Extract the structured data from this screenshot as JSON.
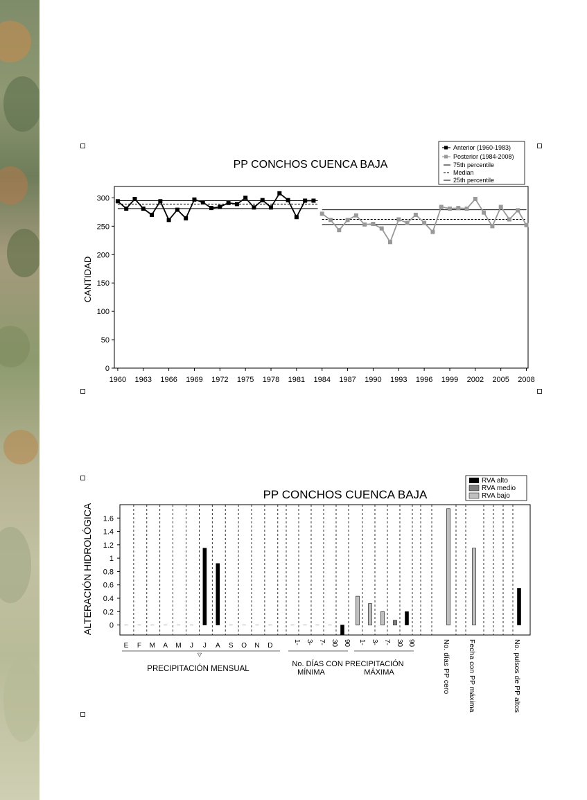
{
  "colors": {
    "anterior": "#000000",
    "posterior": "#999999",
    "alto": "#000000",
    "medio": "#808080",
    "bajo": "#c0c0c0"
  },
  "chart_data": [
    {
      "type": "line",
      "title": "PP CONCHOS CUENCA BAJA",
      "ylabel": "CANTIDAD",
      "ylim": [
        0,
        320
      ],
      "yticks": [
        "0",
        "50",
        "100",
        "150",
        "200",
        "250",
        "300"
      ],
      "xticks": [
        "1960",
        "1963",
        "1966",
        "1969",
        "1972",
        "1975",
        "1978",
        "1981",
        "1984",
        "1987",
        "1990",
        "1993",
        "1996",
        "1999",
        "2002",
        "2005",
        "2008"
      ],
      "legend": [
        "Anterior (1960-1983)",
        "Posterior (1984-2008)",
        "75th percentile",
        "Median",
        "25th percentile"
      ],
      "legend_position": "top-right",
      "series": [
        {
          "name": "Anterior (1960-1983)",
          "x": [
            1960,
            1961,
            1962,
            1963,
            1964,
            1965,
            1966,
            1967,
            1968,
            1969,
            1970,
            1971,
            1972,
            1973,
            1974,
            1975,
            1976,
            1977,
            1978,
            1979,
            1980,
            1981,
            1982,
            1983
          ],
          "values": [
            294,
            281,
            298,
            281,
            270,
            294,
            261,
            279,
            264,
            297,
            292,
            282,
            284,
            291,
            289,
            300,
            283,
            296,
            283,
            308,
            296,
            266,
            295,
            295
          ]
        },
        {
          "name": "Posterior (1984-2008)",
          "x": [
            1984,
            1985,
            1986,
            1987,
            1988,
            1989,
            1990,
            1991,
            1992,
            1993,
            1994,
            1995,
            1996,
            1997,
            1998,
            1999,
            2000,
            2001,
            2002,
            2003,
            2004,
            2005,
            2006,
            2007,
            2008
          ],
          "values": [
            272,
            261,
            243,
            261,
            269,
            253,
            254,
            246,
            222,
            262,
            256,
            270,
            256,
            240,
            284,
            281,
            282,
            281,
            298,
            274,
            250,
            284,
            262,
            278,
            252
          ]
        }
      ],
      "reference_lines": {
        "anterior": {
          "x_range": [
            1960,
            1983.5
          ],
          "p75": 295,
          "median": 289,
          "p25": 281
        },
        "posterior": {
          "x_range": [
            1984,
            2008
          ],
          "p75": 279,
          "median": 262,
          "p25": 253
        }
      }
    },
    {
      "type": "bar",
      "title": "PP CONCHOS CUENCA BAJA",
      "ylabel": "ALTERACIÓN HIDROLÓGICA",
      "ylim": [
        -0.15,
        1.8
      ],
      "yticks": [
        "0",
        "0.2",
        "0.4",
        "0.6",
        "0.8",
        "1",
        "1.2",
        "1.4",
        "1.6"
      ],
      "legend": [
        "RVA alto",
        "RVA  medio",
        "RVA bajo"
      ],
      "legend_position": "top-right",
      "categories": [
        "E",
        "F",
        "M",
        "A",
        "M",
        "J",
        "J",
        "A",
        "S",
        "O",
        "N",
        "D",
        "1-",
        "3-",
        "7-",
        "30",
        "90",
        "1-",
        "3-",
        "7-",
        "30",
        "90",
        "No. días PP cero",
        "Fecha con PP máxima",
        "No. pulsos de PP altos"
      ],
      "series": [
        {
          "name": "RVA alto",
          "values": [
            0,
            0,
            0,
            0,
            0,
            0,
            1.15,
            0.92,
            0,
            0,
            0,
            0,
            0,
            0,
            0,
            0,
            -0.15,
            0,
            0,
            0,
            0,
            0.2,
            0,
            0,
            0.55
          ]
        },
        {
          "name": "RVA  medio",
          "values": [
            0,
            0,
            0,
            0,
            0,
            0,
            0,
            0,
            0,
            0,
            0,
            0,
            0,
            0,
            0,
            0,
            0,
            0,
            0,
            0,
            0.07,
            0,
            0,
            0,
            0
          ]
        },
        {
          "name": "RVA bajo",
          "values": [
            0,
            0,
            0,
            0,
            0,
            0,
            0,
            0,
            0,
            0,
            0,
            0,
            0,
            0,
            0,
            0,
            0,
            0.43,
            0.32,
            0.2,
            0,
            0,
            1.74,
            1.15,
            0
          ]
        }
      ],
      "group_labels": [
        "PRECIPITACIÓN MENSUAL",
        "No. DÍAS CON PRECIPITACIÓN",
        "MÍNIMA",
        "MÁXIMA"
      ],
      "grid": "vertical dashed"
    }
  ]
}
